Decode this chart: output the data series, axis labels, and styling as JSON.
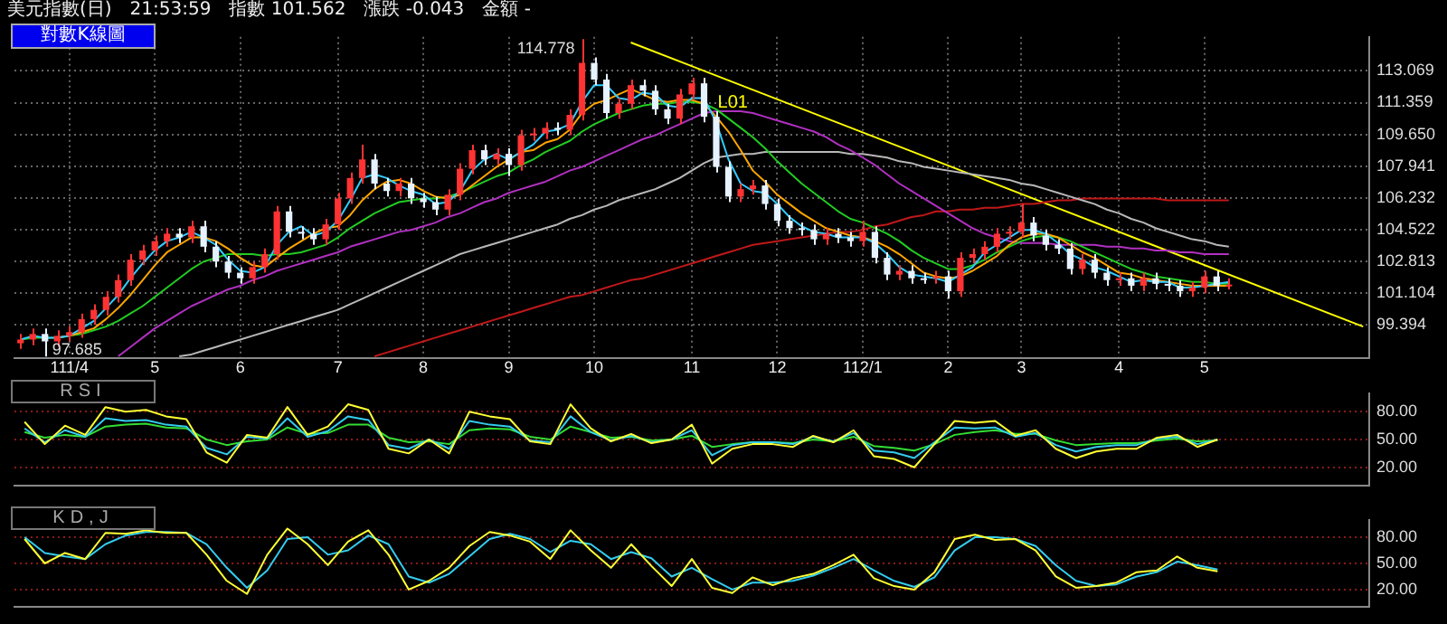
{
  "chart_data": [
    {
      "type": "candlestick",
      "title": "美元指數(日)　21:53:59　指數 101.562　漲跌 -0.043　金額 -",
      "subtitle": "對數K線圖",
      "categories": [
        null,
        null,
        null,
        null,
        "111/4",
        null,
        null,
        null,
        null,
        null,
        null,
        "5",
        null,
        null,
        null,
        null,
        null,
        null,
        "6",
        null,
        null,
        null,
        null,
        null,
        null,
        null,
        "7",
        null,
        null,
        null,
        null,
        null,
        null,
        "8",
        null,
        null,
        null,
        null,
        null,
        null,
        "9",
        null,
        null,
        null,
        null,
        null,
        null,
        "10",
        null,
        null,
        null,
        null,
        null,
        null,
        null,
        "11",
        null,
        null,
        null,
        null,
        null,
        null,
        "12",
        null,
        null,
        null,
        null,
        null,
        null,
        "112/1",
        null,
        null,
        null,
        null,
        null,
        null,
        "2",
        null,
        null,
        null,
        null,
        null,
        "3",
        null,
        null,
        null,
        null,
        null,
        null,
        null,
        "4",
        null,
        null,
        null,
        null,
        null,
        null,
        "5",
        null,
        null,
        null,
        null,
        null,
        null,
        null,
        null,
        null,
        null,
        null,
        null,
        null
      ],
      "ohlc": [
        [
          98.4,
          98.9,
          98.1,
          98.6
        ],
        [
          98.6,
          99.2,
          98.3,
          98.9
        ],
        [
          98.9,
          99.2,
          97.685,
          98.5
        ],
        [
          98.5,
          99.1,
          98.2,
          98.8
        ],
        [
          98.8,
          99.3,
          98.5,
          99.0
        ],
        [
          99.0,
          100.0,
          98.7,
          99.7
        ],
        [
          99.7,
          100.5,
          99.4,
          100.2
        ],
        [
          100.2,
          101.2,
          99.9,
          100.9
        ],
        [
          100.9,
          102.1,
          100.6,
          101.8
        ],
        [
          101.8,
          103.2,
          101.5,
          102.9
        ],
        [
          102.9,
          103.7,
          102.6,
          103.4
        ],
        [
          103.4,
          104.2,
          103.1,
          103.9
        ],
        [
          103.9,
          104.6,
          103.6,
          104.3
        ],
        [
          104.3,
          104.6,
          103.8,
          104.1
        ],
        [
          104.1,
          105.0,
          103.8,
          104.7
        ],
        [
          104.7,
          105.0,
          103.3,
          103.6
        ],
        [
          103.6,
          103.9,
          102.5,
          102.8
        ],
        [
          102.8,
          103.1,
          101.9,
          102.2
        ],
        [
          102.2,
          102.5,
          101.6,
          101.9
        ],
        [
          101.9,
          102.8,
          101.6,
          102.5
        ],
        [
          102.5,
          103.5,
          102.2,
          103.2
        ],
        [
          103.2,
          105.8,
          102.9,
          105.5
        ],
        [
          105.5,
          105.8,
          104.1,
          104.4
        ],
        [
          104.4,
          104.7,
          104.0,
          104.3
        ],
        [
          104.3,
          104.6,
          103.7,
          104.0
        ],
        [
          104.0,
          105.1,
          103.7,
          104.8
        ],
        [
          104.8,
          106.5,
          104.5,
          106.2
        ],
        [
          106.2,
          107.6,
          105.9,
          107.3
        ],
        [
          107.3,
          109.1,
          107.0,
          108.3
        ],
        [
          108.3,
          108.6,
          106.7,
          107.0
        ],
        [
          107.0,
          107.3,
          106.3,
          106.6
        ],
        [
          106.6,
          107.3,
          106.3,
          107.0
        ],
        [
          107.0,
          107.3,
          105.9,
          106.2
        ],
        [
          106.2,
          106.5,
          105.7,
          106.0
        ],
        [
          106.0,
          106.3,
          105.3,
          105.6
        ],
        [
          105.6,
          106.7,
          105.3,
          106.4
        ],
        [
          106.4,
          108.1,
          106.1,
          107.8
        ],
        [
          107.8,
          109.1,
          107.5,
          108.8
        ],
        [
          108.8,
          109.1,
          108.0,
          108.3
        ],
        [
          108.3,
          108.9,
          108.0,
          108.6
        ],
        [
          108.6,
          108.9,
          107.4,
          108.0
        ],
        [
          108.0,
          109.9,
          107.7,
          109.6
        ],
        [
          109.6,
          110.0,
          109.3,
          109.7
        ],
        [
          109.7,
          110.3,
          109.4,
          110.0
        ],
        [
          110.0,
          110.3,
          109.6,
          109.9
        ],
        [
          109.9,
          111.0,
          109.6,
          110.7
        ],
        [
          110.7,
          114.778,
          110.4,
          113.5
        ],
        [
          113.5,
          113.8,
          112.3,
          112.6
        ],
        [
          112.6,
          112.9,
          110.5,
          110.8
        ],
        [
          110.8,
          111.6,
          110.5,
          111.3
        ],
        [
          111.3,
          112.6,
          111.0,
          112.3
        ],
        [
          112.3,
          112.6,
          111.7,
          112.0
        ],
        [
          112.0,
          112.3,
          110.7,
          111.0
        ],
        [
          111.0,
          111.3,
          110.2,
          110.5
        ],
        [
          110.5,
          112.1,
          110.2,
          111.8
        ],
        [
          111.8,
          112.7,
          111.5,
          112.4
        ],
        [
          112.4,
          112.7,
          110.3,
          110.6
        ],
        [
          110.6,
          110.9,
          107.6,
          107.9
        ],
        [
          107.9,
          108.2,
          106.0,
          106.3
        ],
        [
          106.3,
          107.0,
          106.0,
          106.7
        ],
        [
          106.7,
          107.2,
          106.4,
          106.9
        ],
        [
          106.9,
          107.2,
          105.6,
          105.9
        ],
        [
          105.9,
          106.2,
          104.7,
          105.0
        ],
        [
          105.0,
          105.3,
          104.3,
          104.6
        ],
        [
          104.6,
          104.9,
          104.2,
          104.5
        ],
        [
          104.5,
          104.8,
          103.7,
          104.0
        ],
        [
          104.0,
          104.6,
          103.7,
          104.3
        ],
        [
          104.3,
          104.6,
          103.8,
          104.1
        ],
        [
          104.1,
          104.4,
          103.6,
          103.9
        ],
        [
          103.9,
          105.0,
          103.6,
          104.4
        ],
        [
          104.4,
          104.7,
          102.7,
          103.0
        ],
        [
          103.0,
          103.3,
          101.8,
          102.1
        ],
        [
          102.1,
          102.6,
          101.8,
          102.3
        ],
        [
          102.3,
          102.6,
          101.6,
          101.9
        ],
        [
          101.9,
          102.2,
          101.6,
          101.9
        ],
        [
          101.9,
          102.3,
          101.6,
          102.0
        ],
        [
          102.0,
          102.3,
          100.8,
          101.2
        ],
        [
          101.2,
          103.3,
          100.9,
          103.0
        ],
        [
          103.0,
          103.5,
          102.7,
          103.2
        ],
        [
          103.2,
          103.9,
          102.9,
          103.6
        ],
        [
          103.6,
          104.6,
          103.3,
          104.3
        ],
        [
          104.3,
          104.7,
          104.0,
          104.4
        ],
        [
          104.4,
          105.9,
          104.1,
          104.9
        ],
        [
          104.9,
          105.2,
          103.9,
          104.2
        ],
        [
          104.2,
          104.5,
          103.4,
          103.7
        ],
        [
          103.7,
          104.0,
          103.2,
          103.5
        ],
        [
          103.5,
          103.8,
          102.1,
          102.4
        ],
        [
          102.4,
          103.2,
          102.1,
          102.9
        ],
        [
          102.9,
          103.2,
          101.9,
          102.2
        ],
        [
          102.2,
          102.5,
          101.5,
          101.8
        ],
        [
          101.8,
          102.2,
          101.5,
          101.9
        ],
        [
          101.9,
          102.2,
          101.2,
          101.5
        ],
        [
          101.5,
          102.2,
          101.2,
          101.9
        ],
        [
          101.9,
          102.2,
          101.3,
          101.6
        ],
        [
          101.6,
          101.9,
          101.2,
          101.5
        ],
        [
          101.5,
          101.8,
          100.9,
          101.2
        ],
        [
          101.2,
          101.7,
          100.9,
          101.4
        ],
        [
          101.4,
          102.3,
          101.1,
          102.0
        ],
        [
          102.0,
          102.3,
          101.2,
          101.5
        ],
        [
          101.5,
          101.9,
          101.3,
          101.562
        ],
        null,
        null,
        null,
        null,
        null,
        null,
        null,
        null,
        null,
        null,
        null
      ],
      "colors": [
        "#ff3333",
        "#ff3333",
        "#e6f2ff",
        "#ff3333",
        "#ff3333",
        "#ff3333",
        "#ff3333",
        "#ff3333",
        "#ff3333",
        "#ff3333",
        "#ff3333",
        "#ff3333",
        "#ff3333",
        "#e6f2ff",
        "#ff3333",
        "#e6f2ff",
        "#e6f2ff",
        "#e6f2ff",
        "#e6f2ff",
        "#ff3333",
        "#ff3333",
        "#ff3333",
        "#e6f2ff",
        "#e6f2ff",
        "#e6f2ff",
        "#ff3333",
        "#ff3333",
        "#ff3333",
        "#ff3333",
        "#e6f2ff",
        "#e6f2ff",
        "#ff3333",
        "#e6f2ff",
        "#e6f2ff",
        "#e6f2ff",
        "#ff3333",
        "#ff3333",
        "#ff3333",
        "#e6f2ff",
        "#ff3333",
        "#e6f2ff",
        "#ff3333",
        "#ff3333",
        "#ff3333",
        "#e6f2ff",
        "#ff3333",
        "#ff3333",
        "#e6f2ff",
        "#e6f2ff",
        "#ff3333",
        "#ff3333",
        "#e6f2ff",
        "#e6f2ff",
        "#e6f2ff",
        "#ff3333",
        "#ff3333",
        "#e6f2ff",
        "#e6f2ff",
        "#e6f2ff",
        "#ff3333",
        "#ff3333",
        "#e6f2ff",
        "#e6f2ff",
        "#e6f2ff",
        "#e6f2ff",
        "#e6f2ff",
        "#ff3333",
        "#e6f2ff",
        "#e6f2ff",
        "#ff3333",
        "#e6f2ff",
        "#e6f2ff",
        "#ff3333",
        "#e6f2ff",
        "#e6f2ff",
        "#ff3333",
        "#e6f2ff",
        "#ff3333",
        "#ff3333",
        "#ff3333",
        "#ff3333",
        "#ff3333",
        "#ff3333",
        "#e6f2ff",
        "#e6f2ff",
        "#e6f2ff",
        "#e6f2ff",
        "#ff3333",
        "#e6f2ff",
        "#e6f2ff",
        "#ff3333",
        "#e6f2ff",
        "#ff3333",
        "#e6f2ff",
        "#e6f2ff",
        "#e6f2ff",
        "#ff3333",
        "#ff3333",
        "#e6f2ff",
        "#ff3333",
        null,
        null,
        null,
        null,
        null,
        null,
        null,
        null,
        null,
        null,
        null
      ],
      "series": [
        {
          "type": "line",
          "color": "#33ccff",
          "values": [
            98.6,
            98.8,
            98.7,
            98.7,
            98.8,
            99.2,
            99.6,
            100.3,
            101.0,
            101.9,
            102.7,
            103.4,
            103.9,
            104.1,
            104.4,
            104.1,
            103.7,
            102.9,
            102.3,
            102.2,
            102.5,
            103.7,
            104.4,
            104.7,
            104.2,
            104.4,
            105.0,
            106.1,
            107.3,
            107.5,
            107.3,
            106.9,
            106.6,
            106.4,
            105.9,
            106.0,
            106.6,
            107.7,
            108.3,
            108.6,
            108.3,
            108.7,
            109.1,
            109.8,
            109.9,
            110.2,
            111.4,
            112.3,
            112.3,
            111.6,
            111.5,
            111.9,
            111.8,
            111.2,
            111.1,
            111.6,
            111.6,
            110.3,
            108.3,
            107.0,
            106.6,
            106.5,
            105.9,
            105.2,
            104.7,
            104.4,
            104.3,
            104.1,
            104.1,
            104.1,
            103.8,
            103.2,
            102.5,
            102.1,
            102.0,
            101.9,
            101.7,
            102.1,
            102.5,
            103.3,
            103.7,
            104.1,
            104.5,
            104.5,
            104.3,
            103.8,
            103.2,
            102.9,
            102.5,
            102.3,
            102.0,
            101.7,
            101.8,
            101.7,
            101.7,
            101.4,
            101.4,
            101.5,
            101.6,
            101.7,
            null,
            null,
            null,
            null,
            null,
            null,
            null,
            null,
            null,
            null,
            null
          ]
        },
        {
          "type": "line",
          "color": "#ffa500",
          "values": [
            null,
            null,
            null,
            98.7,
            98.8,
            99.0,
            99.2,
            99.7,
            100.3,
            101.0,
            101.8,
            102.6,
            103.3,
            103.7,
            104.1,
            104.1,
            103.9,
            103.5,
            103.0,
            102.6,
            102.5,
            103.0,
            103.5,
            103.9,
            104.3,
            104.6,
            104.7,
            105.3,
            106.1,
            106.7,
            107.1,
            107.2,
            107.0,
            106.6,
            106.3,
            106.2,
            106.4,
            106.9,
            107.4,
            107.9,
            108.3,
            108.7,
            108.8,
            109.2,
            109.4,
            109.9,
            110.8,
            111.3,
            111.5,
            111.8,
            112.1,
            111.8,
            111.5,
            111.4,
            111.5,
            111.5,
            111.3,
            110.6,
            109.8,
            108.8,
            107.7,
            107.1,
            106.4,
            105.9,
            105.4,
            105.0,
            104.6,
            104.4,
            104.2,
            104.1,
            103.9,
            103.6,
            103.2,
            102.7,
            102.2,
            102.0,
            101.9,
            102.0,
            102.3,
            102.7,
            103.1,
            103.7,
            104.1,
            104.3,
            104.3,
            104.1,
            103.7,
            103.3,
            103.0,
            102.6,
            102.2,
            102.1,
            101.9,
            101.8,
            101.7,
            101.6,
            101.5,
            101.5,
            101.5,
            101.5,
            null,
            null,
            null,
            null,
            null,
            null,
            null,
            null,
            null,
            null,
            null
          ]
        },
        {
          "type": "line",
          "color": "#22cc22",
          "values": [
            98.6,
            98.7,
            98.7,
            98.7,
            98.8,
            98.9,
            99.1,
            99.3,
            99.6,
            100.0,
            100.4,
            100.9,
            101.4,
            101.9,
            102.4,
            102.8,
            103.0,
            103.2,
            103.2,
            103.2,
            103.1,
            103.2,
            103.2,
            103.3,
            103.5,
            103.7,
            104.1,
            104.6,
            105.0,
            105.4,
            105.7,
            106.0,
            106.1,
            106.2,
            106.2,
            106.3,
            106.5,
            106.8,
            107.1,
            107.4,
            107.6,
            108.0,
            108.3,
            108.7,
            109.0,
            109.3,
            109.8,
            110.2,
            110.5,
            110.8,
            111.0,
            111.2,
            111.3,
            111.3,
            111.4,
            111.4,
            111.3,
            111.0,
            110.5,
            110.0,
            109.5,
            108.9,
            108.2,
            107.6,
            107.0,
            106.5,
            106.0,
            105.5,
            105.1,
            104.9,
            104.6,
            104.3,
            103.9,
            103.4,
            103.0,
            102.7,
            102.4,
            102.4,
            102.6,
            102.9,
            103.3,
            103.6,
            103.9,
            104.1,
            104.2,
            104.1,
            103.9,
            103.6,
            103.3,
            103.0,
            102.7,
            102.4,
            102.2,
            102.0,
            101.9,
            101.8,
            101.7,
            101.7,
            101.6,
            101.6,
            null,
            null,
            null,
            null,
            null,
            null,
            null,
            null,
            null,
            null,
            null
          ]
        },
        {
          "type": "line",
          "color": "#b030c0",
          "values": [
            null,
            null,
            null,
            null,
            null,
            null,
            null,
            null,
            97.7,
            98.2,
            98.7,
            99.2,
            99.6,
            100.0,
            100.4,
            100.7,
            101.0,
            101.3,
            101.5,
            101.8,
            102.0,
            102.3,
            102.5,
            102.7,
            102.9,
            103.1,
            103.3,
            103.6,
            103.8,
            104.0,
            104.2,
            104.4,
            104.5,
            104.7,
            104.9,
            105.2,
            105.4,
            105.7,
            106.0,
            106.2,
            106.5,
            106.7,
            106.9,
            107.1,
            107.4,
            107.7,
            107.9,
            108.2,
            108.5,
            108.8,
            109.1,
            109.4,
            109.6,
            109.9,
            110.2,
            110.5,
            110.8,
            110.9,
            110.9,
            110.9,
            110.8,
            110.6,
            110.4,
            110.2,
            110.0,
            109.8,
            109.5,
            109.1,
            108.8,
            108.4,
            108.0,
            107.5,
            107.0,
            106.6,
            106.2,
            105.8,
            105.4,
            105.0,
            104.6,
            104.3,
            104.1,
            103.9,
            103.8,
            103.8,
            103.8,
            103.7,
            103.7,
            103.7,
            103.7,
            103.6,
            103.6,
            103.5,
            103.5,
            103.4,
            103.4,
            103.3,
            103.3,
            103.2,
            103.2,
            103.2,
            null,
            null,
            null,
            null,
            null,
            null,
            null,
            null,
            null,
            null,
            null
          ]
        },
        {
          "type": "line",
          "color": "#b8b8b8",
          "values": [
            null,
            null,
            null,
            null,
            null,
            null,
            null,
            null,
            null,
            null,
            null,
            null,
            null,
            97.7,
            97.8,
            98.0,
            98.2,
            98.4,
            98.6,
            98.8,
            99.0,
            99.2,
            99.4,
            99.6,
            99.8,
            100.0,
            100.2,
            100.5,
            100.8,
            101.1,
            101.4,
            101.7,
            102.0,
            102.3,
            102.6,
            102.9,
            103.2,
            103.4,
            103.6,
            103.8,
            104.0,
            104.2,
            104.4,
            104.6,
            104.8,
            105.1,
            105.3,
            105.6,
            105.8,
            106.1,
            106.3,
            106.5,
            106.7,
            107.0,
            107.3,
            107.7,
            108.1,
            108.4,
            108.5,
            108.6,
            108.6,
            108.7,
            108.7,
            108.7,
            108.7,
            108.7,
            108.7,
            108.7,
            108.6,
            108.6,
            108.5,
            108.4,
            108.2,
            108.1,
            107.9,
            107.8,
            107.7,
            107.6,
            107.5,
            107.4,
            107.3,
            107.2,
            107.0,
            106.9,
            106.7,
            106.5,
            106.3,
            106.1,
            105.9,
            105.6,
            105.4,
            105.1,
            104.9,
            104.6,
            104.4,
            104.2,
            104.0,
            103.9,
            103.7,
            103.6,
            null,
            null,
            null,
            null,
            null,
            null,
            null,
            null,
            null,
            null,
            null
          ]
        },
        {
          "type": "line",
          "color": "#c01818",
          "values": [
            null,
            null,
            null,
            null,
            null,
            null,
            null,
            null,
            null,
            null,
            null,
            null,
            null,
            null,
            null,
            null,
            null,
            null,
            null,
            null,
            null,
            null,
            null,
            null,
            null,
            null,
            null,
            null,
            null,
            97.7,
            97.9,
            98.1,
            98.3,
            98.5,
            98.7,
            98.9,
            99.1,
            99.3,
            99.5,
            99.7,
            99.9,
            100.1,
            100.3,
            100.5,
            100.7,
            100.9,
            101.0,
            101.2,
            101.4,
            101.6,
            101.8,
            101.9,
            102.1,
            102.3,
            102.5,
            102.7,
            102.9,
            103.1,
            103.3,
            103.5,
            103.7,
            103.8,
            103.9,
            104.0,
            104.1,
            104.2,
            104.3,
            104.4,
            104.4,
            104.5,
            104.7,
            104.8,
            105.0,
            105.2,
            105.3,
            105.5,
            105.5,
            105.6,
            105.6,
            105.7,
            105.7,
            105.8,
            105.9,
            105.9,
            106.0,
            106.1,
            106.1,
            106.2,
            106.2,
            106.2,
            106.2,
            106.2,
            106.2,
            106.2,
            106.1,
            106.1,
            106.1,
            106.1,
            106.1,
            106.1,
            null,
            null,
            null,
            null,
            null,
            null,
            null,
            null,
            null,
            null,
            null
          ]
        },
        {
          "type": "line",
          "name": "L01",
          "color": "#ffff00",
          "values": [
            null,
            null,
            null,
            null,
            null,
            null,
            null,
            null,
            null,
            null,
            null,
            null,
            null,
            null,
            null,
            null,
            null,
            null,
            null,
            null,
            null,
            null,
            null,
            null,
            null,
            null,
            null,
            null,
            null,
            null,
            null,
            null,
            null,
            null,
            null,
            null,
            null,
            null,
            null,
            null,
            null,
            null,
            null,
            null,
            null,
            null,
            null,
            null,
            null,
            null,
            114.6,
            null,
            null,
            null,
            null,
            null,
            null,
            null,
            null,
            null,
            null,
            null,
            null,
            null,
            null,
            null,
            null,
            null,
            null,
            null,
            null,
            null,
            null,
            null,
            null,
            null,
            null,
            null,
            null,
            null,
            null,
            null,
            null,
            null,
            null,
            null,
            null,
            null,
            null,
            null,
            null,
            null,
            null,
            null,
            null,
            null,
            null,
            null,
            null,
            null,
            null,
            null,
            null,
            null,
            null,
            null,
            null,
            null,
            null,
            null,
            99.3
          ]
        }
      ],
      "ylim": [
        97.6,
        114.9
      ],
      "yticks": [
        99.394,
        101.104,
        102.813,
        104.522,
        106.232,
        107.941,
        {
          "value": 109.65,
          "label": "109.650"
        },
        111.359,
        113.069
      ],
      "annotations": [
        "114.778",
        "97.685"
      ],
      "grid": true,
      "legend": false
    },
    {
      "type": "line",
      "title": "RSI",
      "categories": [
        null,
        null,
        null,
        null,
        null,
        null,
        null,
        null,
        null,
        null,
        null,
        null,
        null,
        null,
        null,
        null,
        null,
        null,
        null,
        null,
        null,
        null,
        null,
        null,
        null,
        null,
        null,
        null,
        null,
        null,
        null,
        null,
        null,
        null,
        null,
        null,
        null,
        null,
        null,
        null,
        null,
        null,
        null,
        null,
        null,
        null,
        null,
        null,
        null,
        null,
        null,
        null,
        null,
        null,
        null,
        null,
        null,
        null,
        null,
        null,
        null,
        null,
        null,
        null,
        null,
        null,
        null
      ],
      "series": [
        {
          "color": "#ffff33",
          "values": [
            69,
            45,
            65,
            55,
            85,
            80,
            82,
            75,
            72,
            36,
            25,
            55,
            52,
            85,
            55,
            64,
            88,
            82,
            40,
            35,
            50,
            35,
            80,
            75,
            72,
            48,
            45,
            88,
            62,
            48,
            56,
            46,
            50,
            66,
            24,
            40,
            45,
            45,
            42,
            54,
            47,
            60,
            32,
            29,
            20,
            45,
            70,
            68,
            70,
            54,
            60,
            40,
            30,
            37,
            40,
            40,
            52,
            55,
            42,
            50,
            null,
            null,
            null,
            null,
            null,
            null,
            null
          ]
        },
        {
          "color": "#33ccee",
          "values": [
            62,
            47,
            60,
            53,
            73,
            70,
            71,
            66,
            64,
            41,
            34,
            53,
            51,
            73,
            53,
            59,
            75,
            71,
            44,
            40,
            50,
            40,
            70,
            66,
            64,
            49,
            47,
            75,
            58,
            49,
            54,
            47,
            50,
            60,
            33,
            44,
            47,
            47,
            45,
            53,
            48,
            57,
            38,
            36,
            30,
            47,
            63,
            62,
            63,
            53,
            57,
            44,
            37,
            42,
            44,
            44,
            51,
            53,
            45,
            50,
            null,
            null,
            null,
            null,
            null,
            null,
            null
          ]
        },
        {
          "color": "#33dd33",
          "values": [
            58,
            52,
            55,
            53,
            64,
            66,
            67,
            63,
            62,
            50,
            44,
            48,
            50,
            63,
            56,
            57,
            66,
            66,
            52,
            47,
            48,
            45,
            60,
            62,
            61,
            53,
            50,
            64,
            58,
            52,
            53,
            49,
            50,
            54,
            42,
            45,
            47,
            47,
            46,
            50,
            48,
            53,
            43,
            41,
            38,
            45,
            55,
            58,
            60,
            56,
            56,
            49,
            44,
            45,
            46,
            46,
            49,
            51,
            48,
            49,
            null,
            null,
            null,
            null,
            null,
            null,
            null
          ]
        }
      ],
      "ylim": [
        0,
        100
      ],
      "yticks": [
        {
          "value": 20,
          "label": "20.00"
        },
        {
          "value": 50,
          "label": "50.00"
        },
        {
          "value": 80,
          "label": "80.00"
        }
      ],
      "grid": "y",
      "legend": false,
      "tick_labels": "y"
    },
    {
      "type": "line",
      "title": "KD,J",
      "categories": [
        null,
        null,
        null,
        null,
        null,
        null,
        null,
        null,
        null,
        null,
        null,
        null,
        null,
        null,
        null,
        null,
        null,
        null,
        null,
        null,
        null,
        null,
        null,
        null,
        null,
        null,
        null,
        null,
        null,
        null,
        null,
        null,
        null,
        null,
        null,
        null,
        null,
        null,
        null,
        null,
        null,
        null,
        null,
        null,
        null,
        null,
        null,
        null,
        null,
        null,
        null,
        null,
        null,
        null,
        null,
        null,
        null,
        null,
        null,
        null,
        null,
        null,
        null,
        null,
        null,
        null,
        null
      ],
      "series": [
        {
          "color": "#ffff33",
          "values": [
            78,
            50,
            62,
            55,
            85,
            84,
            88,
            85,
            85,
            60,
            30,
            15,
            60,
            90,
            72,
            48,
            75,
            88,
            60,
            20,
            30,
            45,
            70,
            86,
            82,
            75,
            55,
            88,
            65,
            45,
            72,
            47,
            24,
            55,
            22,
            16,
            34,
            25,
            33,
            38,
            48,
            60,
            33,
            24,
            20,
            40,
            78,
            83,
            77,
            78,
            65,
            35,
            22,
            24,
            28,
            40,
            42,
            58,
            45,
            41,
            null,
            null,
            null,
            null,
            null,
            null,
            null
          ]
        },
        {
          "color": "#33ccee",
          "values": [
            80,
            62,
            58,
            55,
            72,
            82,
            86,
            86,
            85,
            72,
            45,
            22,
            42,
            78,
            80,
            60,
            65,
            82,
            72,
            35,
            28,
            38,
            58,
            78,
            84,
            78,
            63,
            76,
            72,
            55,
            63,
            56,
            35,
            45,
            32,
            20,
            28,
            28,
            30,
            36,
            45,
            55,
            42,
            30,
            23,
            34,
            65,
            80,
            80,
            78,
            70,
            48,
            30,
            24,
            26,
            35,
            40,
            52,
            48,
            43,
            null,
            null,
            null,
            null,
            null,
            null,
            null
          ]
        }
      ],
      "ylim": [
        0,
        100
      ],
      "yticks": [
        {
          "value": 20,
          "label": "20.00"
        },
        {
          "value": 50,
          "label": "50.00"
        },
        {
          "value": 80,
          "label": "80.00"
        }
      ],
      "grid": "y",
      "legend": false,
      "tick_labels": "y"
    }
  ]
}
